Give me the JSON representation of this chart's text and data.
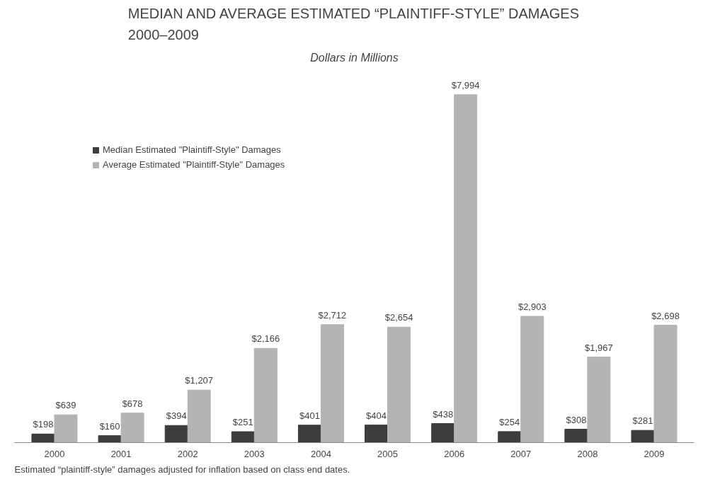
{
  "chart_data": {
    "type": "bar",
    "title": "MEDIAN AND AVERAGE ESTIMATED “PLAINTIFF-STYLE” DAMAGES\n2000–2009",
    "subtitle": "Dollars in Millions",
    "categories": [
      "2000",
      "2001",
      "2002",
      "2003",
      "2004",
      "2005",
      "2006",
      "2007",
      "2008",
      "2009"
    ],
    "series": [
      {
        "name": "Median Estimated \"Plaintiff-Style\" Damages",
        "color": "#3c3c3c",
        "values": [
          198,
          160,
          394,
          251,
          401,
          404,
          438,
          254,
          308,
          281
        ],
        "value_labels": [
          "$198",
          "$160",
          "$394",
          "$251",
          "$401",
          "$404",
          "$438",
          "$254",
          "$308",
          "$281"
        ]
      },
      {
        "name": "Average Estimated \"Plaintiff-Style\" Damages",
        "color": "#b4b4b4",
        "values": [
          639,
          678,
          1207,
          2166,
          2712,
          2654,
          7994,
          2903,
          1967,
          2698
        ],
        "value_labels": [
          "$639",
          "$678",
          "$1,207",
          "$2,166",
          "$2,712",
          "$2,654",
          "$7,994",
          "$2,903",
          "$1,967",
          "$2,698"
        ]
      }
    ],
    "legend": "top left",
    "grid": false,
    "annotations": [
      "Estimated “plaintiff-style” damages adjusted for inflation based on class end dates."
    ]
  }
}
